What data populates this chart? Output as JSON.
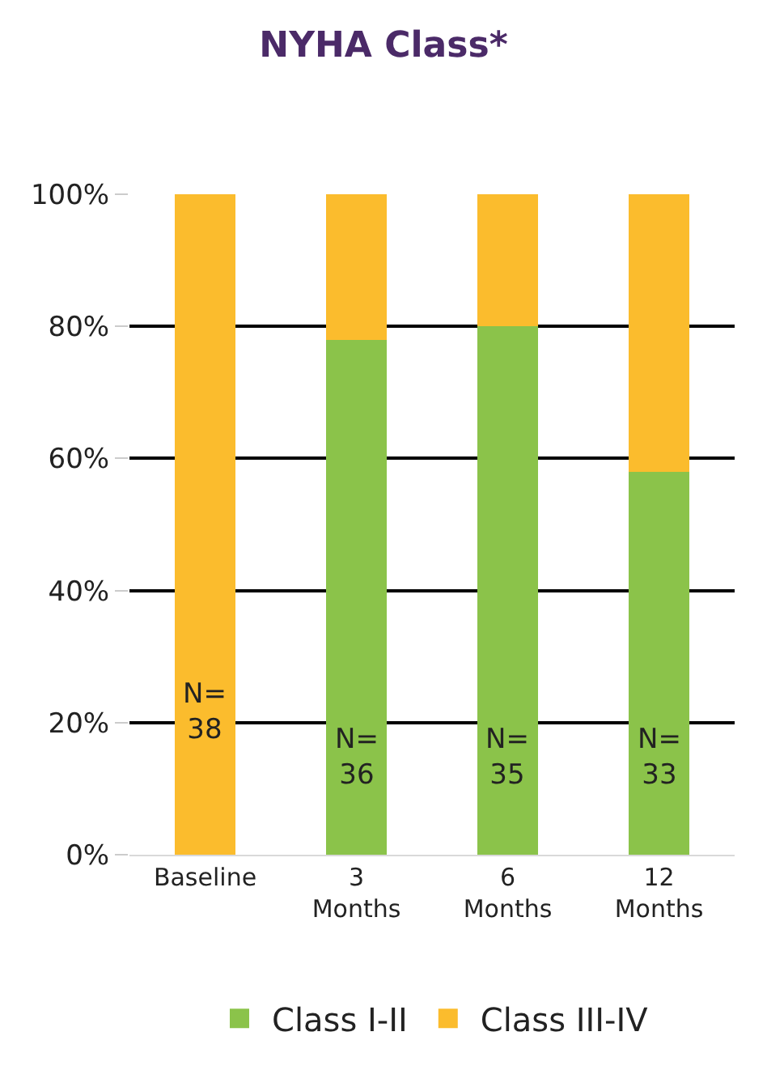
{
  "chart_data": {
    "type": "bar",
    "stacked": true,
    "title": "NYHA Class*",
    "categories": [
      "Baseline",
      "3\nMonths",
      "6\nMonths",
      "12\nMonths"
    ],
    "series": [
      {
        "name": "Class I-II",
        "color": "#8bc34a",
        "values": [
          0,
          78,
          80,
          58
        ]
      },
      {
        "name": "Class III-IV",
        "color": "#fbbc2d",
        "values": [
          100,
          22,
          20,
          42
        ]
      }
    ],
    "ylim": [
      0,
      100
    ],
    "yticks": [
      {
        "value": 0,
        "label": "0%"
      },
      {
        "value": 20,
        "label": "20%"
      },
      {
        "value": 40,
        "label": "40%"
      },
      {
        "value": 60,
        "label": "60%"
      },
      {
        "value": 80,
        "label": "80%"
      },
      {
        "value": 100,
        "label": "100%"
      }
    ],
    "grid": "y",
    "legend": "bottom",
    "annotations": [
      "N=\n38",
      "N=\n36",
      "N=\n35",
      "N=\n33"
    ]
  }
}
